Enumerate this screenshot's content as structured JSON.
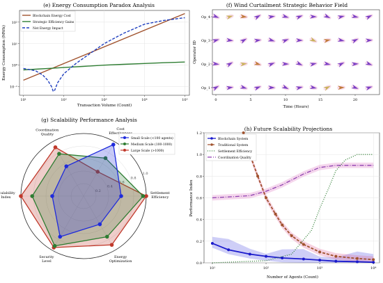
{
  "chart_data": [
    {
      "panel": "e",
      "type": "line",
      "title": "(e) Energy Consumption Paradox Analysis",
      "xlabel": "Transaction Volume (Count)",
      "ylabel": "Energy Consumption (MWh)",
      "xscale": "log",
      "yscale": "log",
      "xticks": [
        "10¹",
        "10²",
        "10³",
        "10⁴",
        "10⁵"
      ],
      "yticks": [
        "10⁻¹",
        "10⁰",
        "10¹",
        "10²"
      ],
      "legend": "top-left",
      "grid": true,
      "series": [
        {
          "name": "Blockchain Energy Cost",
          "color": "#a0522d",
          "style": "solid",
          "x": [
            10,
            100000
          ],
          "y": [
            0.2,
            250
          ]
        },
        {
          "name": "Strategic Efficiency Gains",
          "color": "#2e7d32",
          "style": "solid",
          "x": [
            10,
            20,
            50,
            100,
            300,
            1000,
            3000,
            10000,
            30000,
            100000
          ],
          "y": [
            0.6,
            0.65,
            0.72,
            0.78,
            0.88,
            1.0,
            1.1,
            1.2,
            1.3,
            1.4
          ]
        },
        {
          "name": "Net Energy Impact",
          "color": "#1f3fbf",
          "style": "dashed",
          "x": [
            10,
            20,
            30,
            40,
            50,
            55,
            60,
            70,
            100,
            200,
            500,
            1000,
            3000,
            10000,
            30000,
            100000
          ],
          "y": [
            0.7,
            0.55,
            0.35,
            0.2,
            0.1,
            0.06,
            0.07,
            0.15,
            0.4,
            1.2,
            4,
            10,
            30,
            80,
            120,
            160
          ]
        }
      ]
    },
    {
      "panel": "f",
      "type": "scatter",
      "title": "(f) Wind Curtailment Strategic Behavior Field",
      "xlabel": "Time (Hours)",
      "ylabel": "Operator ID",
      "xticks": [
        "0",
        "5",
        "10",
        "15",
        "20"
      ],
      "yticks": [
        "Op_1",
        "Op_2",
        "Op_3",
        "Op_4"
      ],
      "xlim": [
        -0.5,
        23.5
      ],
      "arrow_hours": [
        0,
        2,
        4,
        6,
        8,
        10,
        12,
        14,
        16,
        18,
        20,
        22
      ],
      "arrow_colors": [
        "#7b3fc4",
        "#c9b15a",
        "#c07a3a"
      ]
    },
    {
      "panel": "g",
      "type": "radar",
      "title": "(g) Scalability Performance Analysis",
      "axes": [
        "Cost\nEffectiveness",
        "Settlement\nEfficiency",
        "Energy\nOptimization",
        "Security\nLevel",
        "Scalability\nIndex",
        "Coordination\nQuality"
      ],
      "rticks": [
        "0.2",
        "0.4",
        "0.6",
        "0.8",
        "1.0"
      ],
      "legend": "top-right",
      "series": [
        {
          "name": "Small Scale (<100 agents)",
          "color": "#1f2bdb",
          "values": [
            0.95,
            0.6,
            0.52,
            0.75,
            0.5,
            0.55
          ]
        },
        {
          "name": "Medium Scale (100-1000)",
          "color": "#2e7d32",
          "values": [
            0.7,
            0.95,
            0.75,
            0.92,
            0.82,
            0.78
          ]
        },
        {
          "name": "Large Scale (>1000)",
          "color": "#c0392b",
          "values": [
            0.45,
            1.0,
            0.9,
            0.95,
            1.0,
            0.9
          ]
        }
      ]
    },
    {
      "panel": "h",
      "type": "line",
      "title": "(h) Future Scalability Projections",
      "xlabel": "Number of Agents (Count)",
      "ylabel": "Performance Index",
      "xscale": "log",
      "xticks": [
        "10¹",
        "10²",
        "10³",
        "10⁴"
      ],
      "yticks": [
        "0.0",
        "0.2",
        "0.4",
        "0.6",
        "0.8",
        "1.0",
        "1.2"
      ],
      "ylim": [
        0,
        1.2
      ],
      "legend": "top-left",
      "grid": true,
      "series": [
        {
          "name": "Blockchain System",
          "color": "#1a1acc",
          "style": "solid-marker",
          "x": [
            10,
            20,
            50,
            100,
            200,
            500,
            1000,
            2000,
            5000,
            10000
          ],
          "y": [
            0.18,
            0.12,
            0.08,
            0.06,
            0.045,
            0.035,
            0.025,
            0.015,
            0.01,
            0.005
          ]
        },
        {
          "name": "Traditional System",
          "color": "#a0522d",
          "style": "dashed-marker",
          "x": [
            38,
            50,
            70,
            100,
            150,
            200,
            300,
            500,
            1000,
            2000,
            5000,
            10000
          ],
          "y": [
            1.2,
            1.0,
            0.8,
            0.6,
            0.45,
            0.35,
            0.25,
            0.17,
            0.1,
            0.06,
            0.04,
            0.03
          ]
        },
        {
          "name": "Settlement Efficiency",
          "color": "#2e7d32",
          "style": "dotted",
          "x": [
            10,
            100,
            300,
            700,
            1000,
            1500,
            2000,
            3000,
            5000,
            10000
          ],
          "y": [
            0.0,
            0.02,
            0.08,
            0.3,
            0.5,
            0.7,
            0.85,
            0.95,
            1.0,
            1.0
          ]
        },
        {
          "name": "Coordination Quality",
          "color": "#8e3fb0",
          "style": "dashdot",
          "x": [
            10,
            50,
            100,
            200,
            500,
            1000,
            2000,
            5000,
            10000
          ],
          "y": [
            0.6,
            0.62,
            0.66,
            0.72,
            0.82,
            0.88,
            0.9,
            0.9,
            0.9
          ]
        }
      ]
    }
  ]
}
